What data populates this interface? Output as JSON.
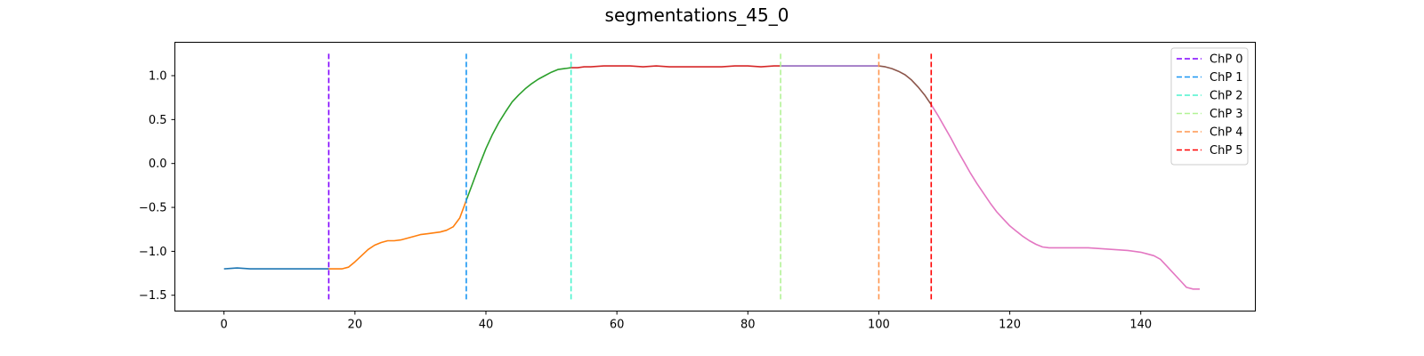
{
  "chart_data": {
    "type": "line",
    "title": "segmentations_45_0",
    "xlabel": "",
    "ylabel": "",
    "xlim": [
      -7.5,
      157.5
    ],
    "ylim": [
      -1.68,
      1.38
    ],
    "xticks": [
      0,
      20,
      40,
      60,
      80,
      100,
      120,
      140
    ],
    "yticks": [
      -1.5,
      -1.0,
      -0.5,
      0.0,
      0.5,
      1.0
    ],
    "ytick_labels": [
      "−1.5",
      "−1.0",
      "−0.5",
      "0.0",
      "0.5",
      "1.0"
    ],
    "grid": false,
    "legend_position": "top-right",
    "x": [
      0,
      2,
      4,
      6,
      8,
      10,
      12,
      14,
      16,
      17,
      18,
      19,
      20,
      21,
      22,
      23,
      24,
      25,
      26,
      27,
      28,
      29,
      30,
      31,
      32,
      33,
      34,
      35,
      36,
      37,
      38,
      39,
      40,
      41,
      42,
      43,
      44,
      45,
      46,
      47,
      48,
      49,
      50,
      51,
      52,
      53,
      54,
      55,
      56,
      58,
      60,
      62,
      64,
      66,
      68,
      70,
      72,
      74,
      76,
      78,
      80,
      82,
      84,
      85,
      86,
      88,
      90,
      92,
      94,
      96,
      98,
      100,
      101,
      102,
      103,
      104,
      105,
      106,
      107,
      108,
      109,
      110,
      111,
      112,
      113,
      114,
      115,
      116,
      117,
      118,
      119,
      120,
      121,
      122,
      123,
      124,
      125,
      126,
      128,
      130,
      132,
      134,
      136,
      138,
      140,
      141,
      142,
      143,
      144,
      145,
      146,
      147,
      148,
      149
    ],
    "y": [
      -1.2,
      -1.19,
      -1.2,
      -1.2,
      -1.2,
      -1.2,
      -1.2,
      -1.2,
      -1.2,
      -1.2,
      -1.2,
      -1.18,
      -1.12,
      -1.05,
      -0.98,
      -0.93,
      -0.9,
      -0.88,
      -0.88,
      -0.87,
      -0.85,
      -0.83,
      -0.81,
      -0.8,
      -0.79,
      -0.78,
      -0.76,
      -0.72,
      -0.62,
      -0.42,
      -0.22,
      -0.02,
      0.17,
      0.33,
      0.47,
      0.59,
      0.7,
      0.78,
      0.85,
      0.91,
      0.96,
      1.0,
      1.04,
      1.07,
      1.08,
      1.09,
      1.09,
      1.1,
      1.1,
      1.11,
      1.11,
      1.11,
      1.1,
      1.11,
      1.1,
      1.1,
      1.1,
      1.1,
      1.1,
      1.11,
      1.11,
      1.1,
      1.11,
      1.11,
      1.11,
      1.11,
      1.11,
      1.11,
      1.11,
      1.11,
      1.11,
      1.11,
      1.1,
      1.08,
      1.05,
      1.01,
      0.95,
      0.87,
      0.78,
      0.67,
      0.55,
      0.42,
      0.29,
      0.15,
      0.02,
      -0.11,
      -0.23,
      -0.34,
      -0.45,
      -0.55,
      -0.63,
      -0.71,
      -0.77,
      -0.83,
      -0.88,
      -0.92,
      -0.95,
      -0.96,
      -0.96,
      -0.96,
      -0.96,
      -0.97,
      -0.98,
      -0.99,
      -1.01,
      -1.03,
      -1.05,
      -1.09,
      -1.17,
      -1.25,
      -1.33,
      -1.41,
      -1.43,
      -1.43
    ],
    "segments": [
      {
        "start": 0,
        "end": 16,
        "color": "#1f77b4"
      },
      {
        "start": 16,
        "end": 37,
        "color": "#ff7f0e"
      },
      {
        "start": 37,
        "end": 53,
        "color": "#2ca02c"
      },
      {
        "start": 53,
        "end": 85,
        "color": "#d62728"
      },
      {
        "start": 85,
        "end": 100,
        "color": "#9467bd"
      },
      {
        "start": 100,
        "end": 108,
        "color": "#8c564b"
      },
      {
        "start": 108,
        "end": 149,
        "color": "#e377c2"
      }
    ],
    "changepoints": [
      {
        "name": "ChP 0",
        "x": 16,
        "color": "#8000ff"
      },
      {
        "name": "ChP 1",
        "x": 37,
        "color": "#1996f3"
      },
      {
        "name": "ChP 2",
        "x": 53,
        "color": "#4df3ce"
      },
      {
        "name": "ChP 3",
        "x": 85,
        "color": "#b2f396"
      },
      {
        "name": "ChP 4",
        "x": 100,
        "color": "#ff964f"
      },
      {
        "name": "ChP 5",
        "x": 108,
        "color": "#ff0000"
      }
    ]
  }
}
